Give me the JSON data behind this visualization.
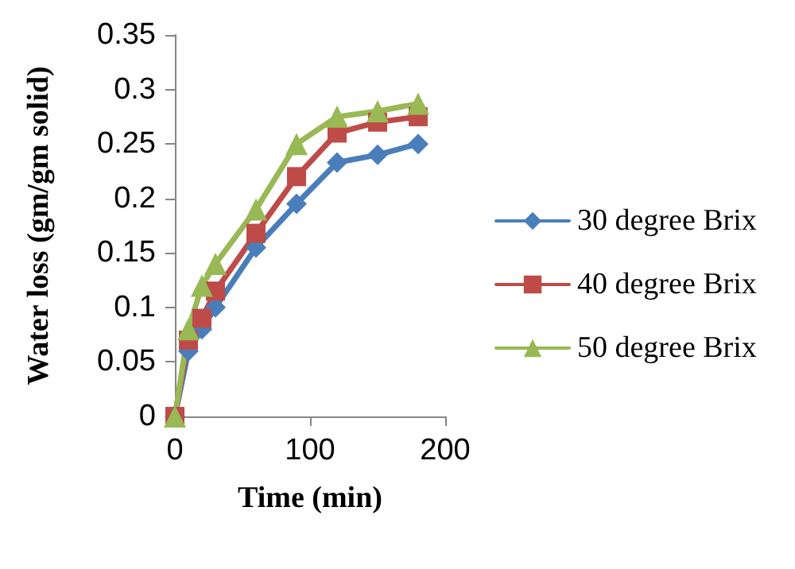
{
  "chart_data": {
    "type": "line",
    "xlabel": "Time (min)",
    "ylabel": "Water loss (gm/gm solid)",
    "xlim": [
      0,
      200
    ],
    "xticks": [
      0,
      100,
      200
    ],
    "ylim": [
      0,
      0.35
    ],
    "yticks": [
      0,
      0.05,
      0.1,
      0.15,
      0.2,
      0.25,
      0.3,
      0.35
    ],
    "grid": false,
    "legend": "right",
    "series": [
      {
        "name": "30 degree Brix",
        "color": "#4a7ebb",
        "marker": "diamond",
        "x": [
          0,
          10,
          20,
          30,
          60,
          90,
          120,
          150,
          180
        ],
        "values": [
          0,
          0.06,
          0.08,
          0.1,
          0.155,
          0.195,
          0.233,
          0.24,
          0.25
        ]
      },
      {
        "name": "40 degree Brix",
        "color": "#be4b48",
        "marker": "square",
        "x": [
          0,
          10,
          20,
          30,
          60,
          90,
          120,
          150,
          180
        ],
        "values": [
          0,
          0.07,
          0.09,
          0.115,
          0.168,
          0.22,
          0.26,
          0.27,
          0.275
        ]
      },
      {
        "name": "50 degree Brix",
        "color": "#98b954",
        "marker": "triangle",
        "x": [
          0,
          10,
          20,
          30,
          60,
          90,
          120,
          150,
          180
        ],
        "values": [
          0,
          0.08,
          0.12,
          0.14,
          0.19,
          0.25,
          0.275,
          0.28,
          0.287
        ]
      }
    ]
  }
}
